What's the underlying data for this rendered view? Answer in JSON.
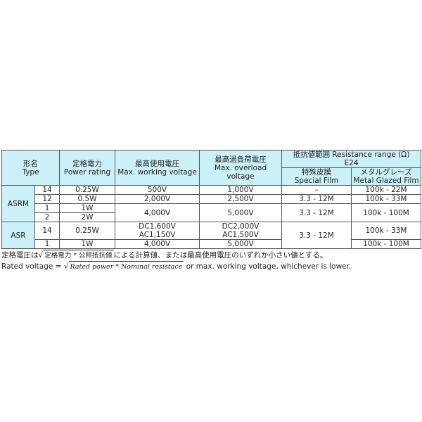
{
  "header": {
    "type": [
      "形名",
      "Type"
    ],
    "power": [
      "定格電力",
      "Power rating"
    ],
    "working": [
      "最高使用電圧",
      "Max. working voltage"
    ],
    "overload": [
      "最高過負荷電圧",
      "Max. overload voltage"
    ],
    "resistance": [
      "抵抗値範囲 Resistance range (Ω)",
      "E24"
    ],
    "special": [
      "特殊皮膜",
      "Special Film"
    ],
    "metal": [
      "メタルグレーズ",
      "Metal Glazed Film"
    ]
  },
  "rows": {
    "asrm": "ASRM",
    "asr": "ASR",
    "r1": {
      "sub": "14",
      "power": "0.25W",
      "working": "500V",
      "overload": "1,000V",
      "special": "–",
      "metal": "100k - 22M"
    },
    "r2": {
      "sub": "12",
      "power": "0.5W",
      "working": "2,000V",
      "overload": "2,500V",
      "special": "3.3 - 12M",
      "metal": "100k - 33M"
    },
    "r3": {
      "sub": "1",
      "power": "1W",
      "working": "4,000V",
      "overload": "5,000V",
      "special": "3.3 - 12M",
      "metal": "100k - 100M"
    },
    "r4": {
      "sub": "2",
      "power": "2W"
    },
    "r5": {
      "sub": "14",
      "power": "0.25W",
      "working": [
        "DC1,600V",
        "AC1,150V"
      ],
      "overload": [
        "DC2,000V",
        "AC1,500V"
      ],
      "special": "3.3 - 12M",
      "metal": "100k - 33M"
    },
    "r6": {
      "sub": "1",
      "power": "1W",
      "working": "4,000V",
      "overload": "5,000V",
      "metal": "100k - 100M"
    }
  },
  "notes": {
    "jp_pre": "定格電圧は",
    "jp_sqrt": "定格電力 * 公称抵抗値",
    "jp_post": "による計算値、または最高使用電圧のいずれか小さい値とする。",
    "en_pre": "Rated voltage = ",
    "en_sqrt": "Rated power  * Nominal resistace",
    "en_post": " or max. working voltage, whichever is lower."
  }
}
